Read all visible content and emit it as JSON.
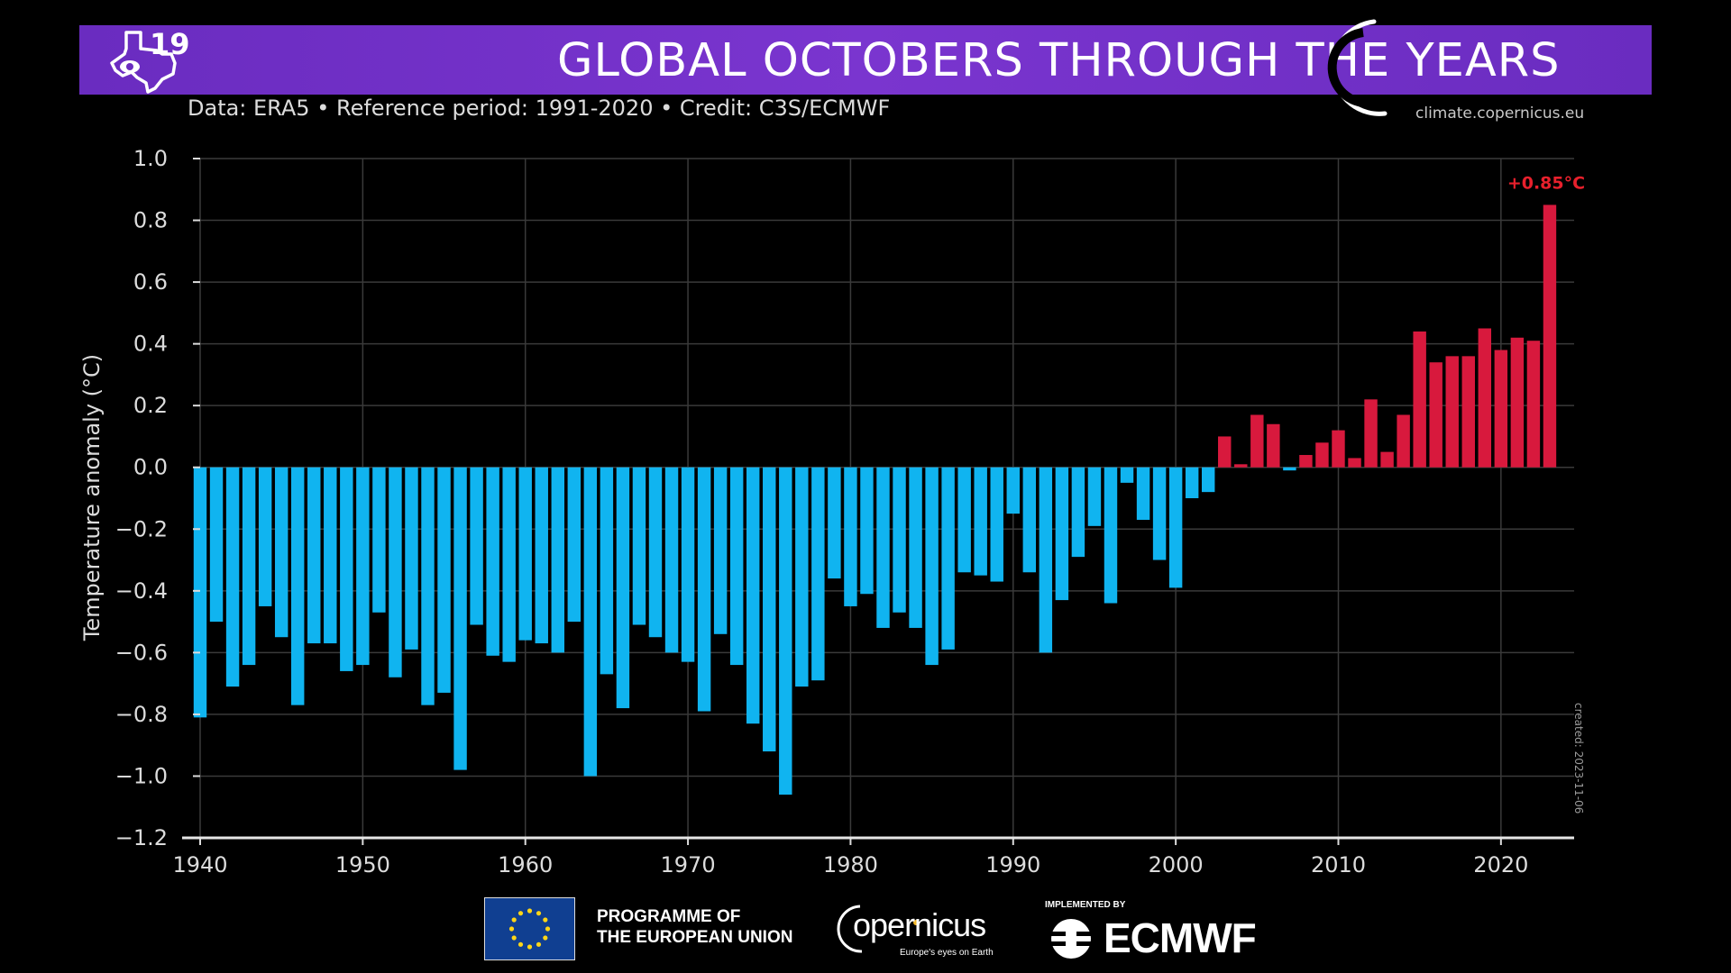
{
  "header": {
    "title": "GLOBAL OCTOBERS THROUGH THE YEARS",
    "subtitle": "Data: ERA5 • Reference period: 1991-2020 • Credit: C3S/ECMWF",
    "website": "climate.copernicus.eu",
    "station_logo_text": "19"
  },
  "chart_data": {
    "type": "bar",
    "title": "GLOBAL OCTOBERS THROUGH THE YEARS",
    "ylabel": "Temperature anomaly (°C)",
    "xlabel": "",
    "ylim": [
      -1.2,
      1.0
    ],
    "yticks": [
      1.0,
      0.8,
      0.6,
      0.4,
      0.2,
      0.0,
      -0.2,
      -0.4,
      -0.6,
      -0.8,
      -1.0,
      -1.2
    ],
    "ytick_labels": [
      "1.0",
      "0.8",
      "0.6",
      "0.4",
      "0.2",
      "0.0",
      "−0.2",
      "−0.4",
      "−0.6",
      "−0.8",
      "−1.0",
      "−1.2"
    ],
    "xticks": [
      1940,
      1950,
      1960,
      1970,
      1980,
      1990,
      2000,
      2010,
      2020
    ],
    "grid": true,
    "x": [
      1940,
      1941,
      1942,
      1943,
      1944,
      1945,
      1946,
      1947,
      1948,
      1949,
      1950,
      1951,
      1952,
      1953,
      1954,
      1955,
      1956,
      1957,
      1958,
      1959,
      1960,
      1961,
      1962,
      1963,
      1964,
      1965,
      1966,
      1967,
      1968,
      1969,
      1970,
      1971,
      1972,
      1973,
      1974,
      1975,
      1976,
      1977,
      1978,
      1979,
      1980,
      1981,
      1982,
      1983,
      1984,
      1985,
      1986,
      1987,
      1988,
      1989,
      1990,
      1991,
      1992,
      1993,
      1994,
      1995,
      1996,
      1997,
      1998,
      1999,
      2000,
      2001,
      2002,
      2003,
      2004,
      2005,
      2006,
      2007,
      2008,
      2009,
      2010,
      2011,
      2012,
      2013,
      2014,
      2015,
      2016,
      2017,
      2018,
      2019,
      2020,
      2021,
      2022,
      2023
    ],
    "values": [
      -0.81,
      -0.5,
      -0.71,
      -0.64,
      -0.45,
      -0.55,
      -0.77,
      -0.57,
      -0.57,
      -0.66,
      -0.64,
      -0.47,
      -0.68,
      -0.59,
      -0.77,
      -0.73,
      -0.98,
      -0.51,
      -0.61,
      -0.63,
      -0.56,
      -0.57,
      -0.6,
      -0.5,
      -1.0,
      -0.67,
      -0.78,
      -0.51,
      -0.55,
      -0.6,
      -0.63,
      -0.79,
      -0.54,
      -0.64,
      -0.83,
      -0.92,
      -1.06,
      -0.71,
      -0.69,
      -0.36,
      -0.45,
      -0.41,
      -0.52,
      -0.47,
      -0.52,
      -0.64,
      -0.59,
      -0.34,
      -0.35,
      -0.37,
      -0.15,
      -0.34,
      -0.6,
      -0.43,
      -0.29,
      -0.19,
      -0.44,
      -0.05,
      -0.17,
      -0.3,
      -0.39,
      -0.1,
      -0.08,
      0.1,
      0.01,
      0.17,
      0.14,
      -0.01,
      0.04,
      0.08,
      0.12,
      0.03,
      0.22,
      0.05,
      0.17,
      0.44,
      0.34,
      0.36,
      0.36,
      0.45,
      0.38,
      0.42,
      0.41,
      0.85
    ],
    "colors": {
      "negative": "#10b4f0",
      "positive": "#d8193d",
      "highlight_label": "#e8202c"
    },
    "annotation": {
      "text": "+0.85°C",
      "year": 2023
    }
  },
  "footer": {
    "created": "created: 2023-11-06",
    "eu_line1": "PROGRAMME OF",
    "eu_line2": "THE EUROPEAN UNION",
    "copernicus_word": "opernicus",
    "copernicus_tagline": "Europe's eyes on Earth",
    "implemented_by": "IMPLEMENTED BY",
    "ecmwf": "ECMWF"
  }
}
